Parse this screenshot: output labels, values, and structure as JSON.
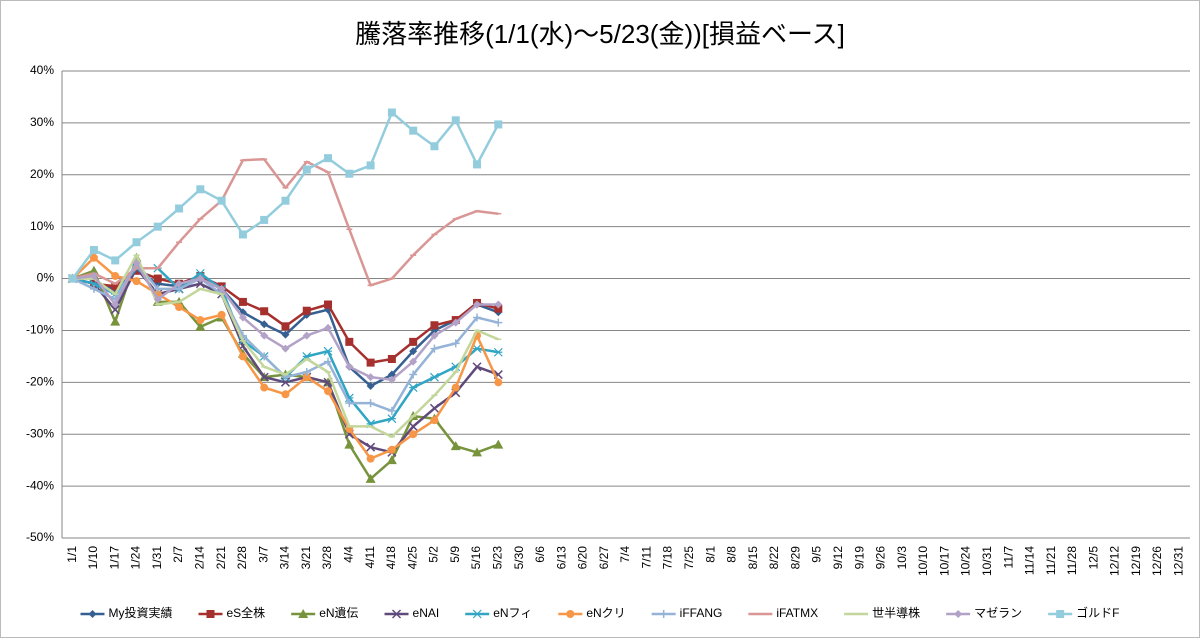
{
  "chart_data": {
    "type": "line",
    "title": "騰落率推移(1/1(水)～5/23(金))[損益ベース]",
    "categories": [
      "1/1",
      "1/10",
      "1/17",
      "1/24",
      "1/31",
      "2/7",
      "2/14",
      "2/21",
      "2/28",
      "3/7",
      "3/14",
      "3/21",
      "3/28",
      "4/4",
      "4/11",
      "4/18",
      "4/25",
      "5/2",
      "5/9",
      "5/16",
      "5/23",
      "5/30",
      "6/6",
      "6/13",
      "6/20",
      "6/27",
      "7/4",
      "7/11",
      "7/18",
      "7/25",
      "8/1",
      "8/8",
      "8/15",
      "8/22",
      "8/29",
      "9/5",
      "9/12",
      "9/19",
      "9/26",
      "10/3",
      "10/10",
      "10/17",
      "10/24",
      "10/31",
      "11/7",
      "11/14",
      "11/21",
      "11/28",
      "12/5",
      "12/12",
      "12/19",
      "12/26",
      "12/31"
    ],
    "ylim": [
      -50,
      40
    ],
    "yticks": [
      {
        "value": -50,
        "label": "-50%"
      },
      {
        "value": -40,
        "label": "-40%"
      },
      {
        "value": -30,
        "label": "-30%"
      },
      {
        "value": -20,
        "label": "-20%"
      },
      {
        "value": -10,
        "label": "-10%"
      },
      {
        "value": 0,
        "label": "0%"
      },
      {
        "value": 10,
        "label": "10%"
      },
      {
        "value": 20,
        "label": "20%"
      },
      {
        "value": 30,
        "label": "30%"
      },
      {
        "value": 40,
        "label": "40%"
      }
    ],
    "grid": true,
    "legend": "bottom",
    "series": [
      {
        "name": "My投資実績",
        "color": "#376092",
        "marker": "diamond",
        "values": [
          0,
          -1,
          -2,
          1.5,
          -1,
          -1.5,
          0,
          -2,
          -6.5,
          -8.8,
          -10.8,
          -7,
          -6,
          -17,
          -20.7,
          -18.5,
          -14,
          -10,
          -8,
          -5,
          -6.5,
          null,
          null,
          null,
          null,
          null,
          null,
          null,
          null,
          null,
          null,
          null,
          null,
          null,
          null,
          null,
          null,
          null,
          null,
          null,
          null,
          null,
          null,
          null,
          null,
          null,
          null,
          null,
          null,
          null,
          null,
          null,
          null
        ]
      },
      {
        "name": "eS全株",
        "color": "#A5302D",
        "marker": "square",
        "values": [
          0,
          -1,
          -1.5,
          1.5,
          0,
          -1,
          0.5,
          -1.5,
          -4.5,
          -6.3,
          -9.2,
          -6.2,
          -5,
          -12.2,
          -16.2,
          -15.5,
          -12.2,
          -9,
          -8,
          -4.7,
          -5.8,
          null,
          null,
          null,
          null,
          null,
          null,
          null,
          null,
          null,
          null,
          null,
          null,
          null,
          null,
          null,
          null,
          null,
          null,
          null,
          null,
          null,
          null,
          null,
          null,
          null,
          null,
          null,
          null,
          null,
          null,
          null,
          null
        ]
      },
      {
        "name": "eN遺伝",
        "color": "#77933C",
        "marker": "triangle",
        "values": [
          0,
          1.5,
          -8.3,
          4,
          -4.5,
          -4.5,
          -9.3,
          -7.5,
          -14.5,
          -19,
          -18.5,
          -19,
          -20,
          -32,
          -38.6,
          -35,
          -26.5,
          -27,
          -32.3,
          -33.5,
          -32,
          null,
          null,
          null,
          null,
          null,
          null,
          null,
          null,
          null,
          null,
          null,
          null,
          null,
          null,
          null,
          null,
          null,
          null,
          null,
          null,
          null,
          null,
          null,
          null,
          null,
          null,
          null,
          null,
          null,
          null,
          null,
          null
        ]
      },
      {
        "name": "eNAI",
        "color": "#604A7B",
        "marker": "x",
        "values": [
          0,
          -1,
          -6,
          2,
          -3,
          -2,
          -1,
          -3,
          -13,
          -19,
          -20,
          -19,
          -20,
          -30,
          -32.5,
          -33.5,
          -28.5,
          -25,
          -22,
          -17,
          -18.5,
          null,
          null,
          null,
          null,
          null,
          null,
          null,
          null,
          null,
          null,
          null,
          null,
          null,
          null,
          null,
          null,
          null,
          null,
          null,
          null,
          null,
          null,
          null,
          null,
          null,
          null,
          null,
          null,
          null,
          null,
          null,
          null
        ]
      },
      {
        "name": "eNフィ",
        "color": "#31A5C4",
        "marker": "star",
        "values": [
          0,
          -1,
          -3,
          2,
          2,
          -2,
          1,
          -2,
          -12,
          -15,
          -19,
          -15,
          -14,
          -23,
          -28,
          -27,
          -21,
          -19,
          -17,
          -13.5,
          -14.2,
          null,
          null,
          null,
          null,
          null,
          null,
          null,
          null,
          null,
          null,
          null,
          null,
          null,
          null,
          null,
          null,
          null,
          null,
          null,
          null,
          null,
          null,
          null,
          null,
          null,
          null,
          null,
          null,
          null,
          null,
          null,
          null
        ]
      },
      {
        "name": "eNクリ",
        "color": "#F79646",
        "marker": "circle",
        "values": [
          0,
          4,
          0.5,
          -0.5,
          -3,
          -5.5,
          -8,
          -7,
          -15,
          -21,
          -22.3,
          -19,
          -21.7,
          -29,
          -34.7,
          -33,
          -30,
          -27.3,
          -21,
          -11,
          -20,
          null,
          null,
          null,
          null,
          null,
          null,
          null,
          null,
          null,
          null,
          null,
          null,
          null,
          null,
          null,
          null,
          null,
          null,
          null,
          null,
          null,
          null,
          null,
          null,
          null,
          null,
          null,
          null,
          null,
          null,
          null,
          null
        ]
      },
      {
        "name": "iFFANG",
        "color": "#95B3D7",
        "marker": "plus",
        "values": [
          0,
          -2,
          -4,
          3,
          -2,
          -2,
          0,
          -3,
          -11,
          -15,
          -19,
          -18,
          -16,
          -24,
          -24,
          -25.5,
          -18.5,
          -13.5,
          -12.5,
          -7.5,
          -8.5,
          null,
          null,
          null,
          null,
          null,
          null,
          null,
          null,
          null,
          null,
          null,
          null,
          null,
          null,
          null,
          null,
          null,
          null,
          null,
          null,
          null,
          null,
          null,
          null,
          null,
          null,
          null,
          null,
          null,
          null,
          null,
          null
        ]
      },
      {
        "name": "iFATMX",
        "color": "#D99694",
        "marker": "dash",
        "values": [
          0,
          1,
          -1,
          2,
          2,
          7,
          11.5,
          15,
          22.8,
          23,
          17.5,
          22.5,
          20.5,
          9.5,
          -1.3,
          0,
          4.5,
          8.5,
          11.5,
          13,
          12.5,
          null,
          null,
          null,
          null,
          null,
          null,
          null,
          null,
          null,
          null,
          null,
          null,
          null,
          null,
          null,
          null,
          null,
          null,
          null,
          null,
          null,
          null,
          null,
          null,
          null,
          null,
          null,
          null,
          null,
          null,
          null,
          null
        ]
      },
      {
        "name": "世半導株",
        "color": "#C3D69B",
        "marker": "dash",
        "values": [
          0,
          0,
          -3,
          4.5,
          -5,
          -4.5,
          -2,
          -3,
          -12,
          -17,
          -18.5,
          -15.5,
          -18,
          -28.5,
          -28.5,
          -30.5,
          -26.5,
          -22.5,
          -18,
          -10,
          -11.7,
          null,
          null,
          null,
          null,
          null,
          null,
          null,
          null,
          null,
          null,
          null,
          null,
          null,
          null,
          null,
          null,
          null,
          null,
          null,
          null,
          null,
          null,
          null,
          null,
          null,
          null,
          null,
          null,
          null,
          null,
          null,
          null
        ]
      },
      {
        "name": "マゼラン",
        "color": "#B3A2C7",
        "marker": "diamond",
        "values": [
          0,
          0.5,
          -5,
          3,
          -4,
          -1,
          0,
          -2,
          -7.5,
          -11,
          -13.5,
          -11,
          -9.5,
          -17,
          -19,
          -19.5,
          -16,
          -11,
          -8.5,
          -5,
          -5,
          null,
          null,
          null,
          null,
          null,
          null,
          null,
          null,
          null,
          null,
          null,
          null,
          null,
          null,
          null,
          null,
          null,
          null,
          null,
          null,
          null,
          null,
          null,
          null,
          null,
          null,
          null,
          null,
          null,
          null,
          null,
          null
        ]
      },
      {
        "name": "ゴルドF",
        "color": "#93CDDD",
        "marker": "square",
        "values": [
          0,
          5.5,
          3.5,
          7,
          10,
          13.5,
          17.2,
          15,
          8.5,
          11.3,
          15,
          21,
          23.2,
          20.2,
          21.8,
          32,
          28.5,
          25.5,
          30.5,
          22,
          29.7,
          null,
          null,
          null,
          null,
          null,
          null,
          null,
          null,
          null,
          null,
          null,
          null,
          null,
          null,
          null,
          null,
          null,
          null,
          null,
          null,
          null,
          null,
          null,
          null,
          null,
          null,
          null,
          null,
          null,
          null,
          null,
          null
        ]
      }
    ]
  }
}
